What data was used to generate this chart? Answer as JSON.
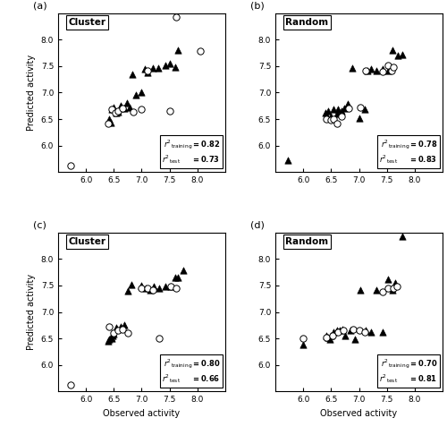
{
  "xlim": [
    5.5,
    8.5
  ],
  "ylim": [
    5.5,
    8.5
  ],
  "xtick_labels": [
    6.0,
    6.5,
    7.0,
    7.5,
    8.0
  ],
  "ytick_labels": [
    6.0,
    6.5,
    7.0,
    7.5,
    8.0
  ],
  "xlabel": "Observed activity",
  "ylabel": "Predicted activity",
  "panels": [
    {
      "label": "(a)",
      "title": "Cluster",
      "r2_train": "0.82",
      "r2_test": "0.73",
      "train": [
        [
          6.42,
          6.5
        ],
        [
          6.44,
          6.43
        ],
        [
          6.47,
          6.68
        ],
        [
          6.5,
          6.72
        ],
        [
          6.54,
          6.62
        ],
        [
          6.58,
          6.63
        ],
        [
          6.63,
          6.75
        ],
        [
          6.68,
          6.7
        ],
        [
          6.73,
          6.8
        ],
        [
          6.78,
          6.72
        ],
        [
          6.83,
          7.35
        ],
        [
          6.9,
          6.95
        ],
        [
          7.0,
          7.0
        ],
        [
          7.05,
          7.45
        ],
        [
          7.1,
          7.38
        ],
        [
          7.2,
          7.47
        ],
        [
          7.3,
          7.47
        ],
        [
          7.42,
          7.52
        ],
        [
          7.5,
          7.55
        ],
        [
          7.6,
          7.48
        ],
        [
          7.65,
          7.8
        ]
      ],
      "test": [
        [
          5.72,
          5.62
        ],
        [
          6.4,
          6.42
        ],
        [
          6.47,
          6.68
        ],
        [
          6.52,
          6.62
        ],
        [
          6.58,
          6.65
        ],
        [
          6.65,
          6.7
        ],
        [
          6.85,
          6.63
        ],
        [
          7.0,
          6.68
        ],
        [
          7.1,
          7.42
        ],
        [
          7.5,
          6.65
        ],
        [
          7.62,
          8.42
        ],
        [
          8.05,
          7.78
        ]
      ]
    },
    {
      "label": "(b)",
      "title": "Random",
      "r2_train": "0.78",
      "r2_test": "0.83",
      "train": [
        [
          5.72,
          5.72
        ],
        [
          6.4,
          6.62
        ],
        [
          6.45,
          6.65
        ],
        [
          6.5,
          6.55
        ],
        [
          6.55,
          6.68
        ],
        [
          6.6,
          6.6
        ],
        [
          6.63,
          6.68
        ],
        [
          6.68,
          6.65
        ],
        [
          6.73,
          6.7
        ],
        [
          6.8,
          6.78
        ],
        [
          6.88,
          7.47
        ],
        [
          7.0,
          6.52
        ],
        [
          7.1,
          6.68
        ],
        [
          7.15,
          7.42
        ],
        [
          7.22,
          7.45
        ],
        [
          7.32,
          7.42
        ],
        [
          7.42,
          7.45
        ],
        [
          7.52,
          7.42
        ],
        [
          7.6,
          7.8
        ],
        [
          7.7,
          7.7
        ],
        [
          7.78,
          7.72
        ]
      ],
      "test": [
        [
          6.42,
          6.5
        ],
        [
          6.5,
          6.48
        ],
        [
          6.55,
          6.5
        ],
        [
          6.6,
          6.42
        ],
        [
          6.68,
          6.55
        ],
        [
          6.82,
          6.7
        ],
        [
          7.02,
          6.72
        ],
        [
          7.12,
          7.42
        ],
        [
          7.42,
          7.4
        ],
        [
          7.52,
          7.52
        ],
        [
          7.58,
          7.42
        ],
        [
          7.62,
          7.48
        ]
      ]
    },
    {
      "label": "(c)",
      "title": "Cluster",
      "r2_train": "0.80",
      "r2_test": "0.66",
      "train": [
        [
          6.4,
          6.45
        ],
        [
          6.42,
          6.48
        ],
        [
          6.44,
          6.52
        ],
        [
          6.46,
          6.5
        ],
        [
          6.48,
          6.56
        ],
        [
          6.5,
          6.58
        ],
        [
          6.55,
          6.7
        ],
        [
          6.62,
          6.72
        ],
        [
          6.68,
          6.75
        ],
        [
          6.75,
          7.4
        ],
        [
          6.82,
          7.52
        ],
        [
          7.0,
          7.5
        ],
        [
          7.08,
          7.45
        ],
        [
          7.15,
          7.42
        ],
        [
          7.22,
          7.48
        ],
        [
          7.32,
          7.45
        ],
        [
          7.42,
          7.48
        ],
        [
          7.52,
          7.48
        ],
        [
          7.6,
          7.65
        ],
        [
          7.65,
          7.65
        ],
        [
          7.75,
          7.78
        ]
      ],
      "test": [
        [
          5.72,
          5.63
        ],
        [
          6.42,
          6.72
        ],
        [
          6.5,
          6.6
        ],
        [
          6.58,
          6.65
        ],
        [
          6.65,
          6.68
        ],
        [
          6.75,
          6.6
        ],
        [
          7.0,
          7.45
        ],
        [
          7.1,
          7.45
        ],
        [
          7.2,
          7.42
        ],
        [
          7.32,
          6.5
        ],
        [
          7.52,
          7.48
        ],
        [
          7.62,
          7.45
        ]
      ]
    },
    {
      "label": "(d)",
      "title": "Random",
      "r2_train": "0.70",
      "r2_test": "0.81",
      "train": [
        [
          6.0,
          6.38
        ],
        [
          6.42,
          6.55
        ],
        [
          6.44,
          6.52
        ],
        [
          6.48,
          6.48
        ],
        [
          6.5,
          6.55
        ],
        [
          6.55,
          6.62
        ],
        [
          6.6,
          6.65
        ],
        [
          6.65,
          6.65
        ],
        [
          6.7,
          6.68
        ],
        [
          6.75,
          6.55
        ],
        [
          6.85,
          6.65
        ],
        [
          6.92,
          6.48
        ],
        [
          7.02,
          7.42
        ],
        [
          7.12,
          6.65
        ],
        [
          7.22,
          6.62
        ],
        [
          7.32,
          7.42
        ],
        [
          7.42,
          6.62
        ],
        [
          7.52,
          7.62
        ],
        [
          7.6,
          7.42
        ],
        [
          7.65,
          7.55
        ],
        [
          7.78,
          8.42
        ]
      ],
      "test": [
        [
          6.0,
          6.5
        ],
        [
          6.42,
          6.52
        ],
        [
          6.52,
          6.55
        ],
        [
          6.62,
          6.62
        ],
        [
          6.72,
          6.65
        ],
        [
          6.9,
          6.68
        ],
        [
          7.0,
          6.65
        ],
        [
          7.1,
          6.62
        ],
        [
          7.42,
          7.38
        ],
        [
          7.52,
          7.45
        ],
        [
          7.62,
          7.45
        ],
        [
          7.68,
          7.48
        ]
      ]
    }
  ],
  "train_marker": "^",
  "test_marker": "o",
  "train_color": "black",
  "test_color": "white",
  "test_edge_color": "black",
  "marker_size": 28,
  "figsize": [
    5.0,
    4.86
  ],
  "dpi": 100
}
